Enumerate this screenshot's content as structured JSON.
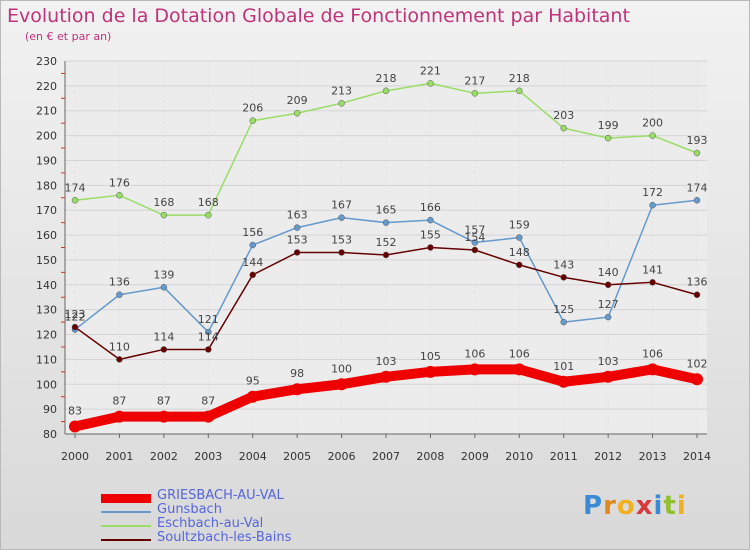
{
  "title": "Evolution de la Dotation Globale de Fonctionnement par Habitant",
  "subtitle": "(en € et par an)",
  "chart_data": {
    "type": "line",
    "title": "Evolution de la Dotation Globale de Fonctionnement par Habitant",
    "subtitle": "(en € et par an)",
    "x": [
      2000,
      2001,
      2002,
      2003,
      2004,
      2005,
      2006,
      2007,
      2008,
      2009,
      2010,
      2011,
      2012,
      2013,
      2014
    ],
    "ylim": [
      80,
      230
    ],
    "yticks": [
      80,
      90,
      100,
      110,
      120,
      130,
      140,
      150,
      160,
      170,
      180,
      190,
      200,
      210,
      220,
      230
    ],
    "grid": true,
    "legend_position": "bottom-left",
    "series": [
      {
        "name": "GRIESBACH-AU-VAL",
        "color": "#ee0000",
        "values": [
          83,
          87,
          87,
          87,
          95,
          98,
          100,
          103,
          105,
          106,
          106,
          101,
          103,
          106,
          102
        ]
      },
      {
        "name": "Gunsbach",
        "color": "#6699cc",
        "values": [
          122,
          136,
          139,
          121,
          156,
          163,
          167,
          165,
          166,
          157,
          159,
          125,
          127,
          172,
          174
        ]
      },
      {
        "name": "Eschbach-au-Val",
        "color": "#99dd66",
        "values": [
          174,
          176,
          168,
          168,
          206,
          209,
          213,
          218,
          221,
          217,
          218,
          203,
          199,
          200,
          193
        ]
      },
      {
        "name": "Soultzbach-les-Bains",
        "color": "#660000",
        "values": [
          123,
          110,
          114,
          114,
          144,
          153,
          153,
          152,
          155,
          154,
          148,
          143,
          140,
          141,
          136
        ]
      }
    ]
  },
  "logo": {
    "letters": [
      "P",
      "r",
      "o",
      "x",
      "i",
      "t",
      "i"
    ],
    "colors": [
      "#3a8ad6",
      "#e08a1e",
      "#f0b020",
      "#d63a3a",
      "#3a8ad6",
      "#90c030",
      "#f0b020"
    ]
  }
}
